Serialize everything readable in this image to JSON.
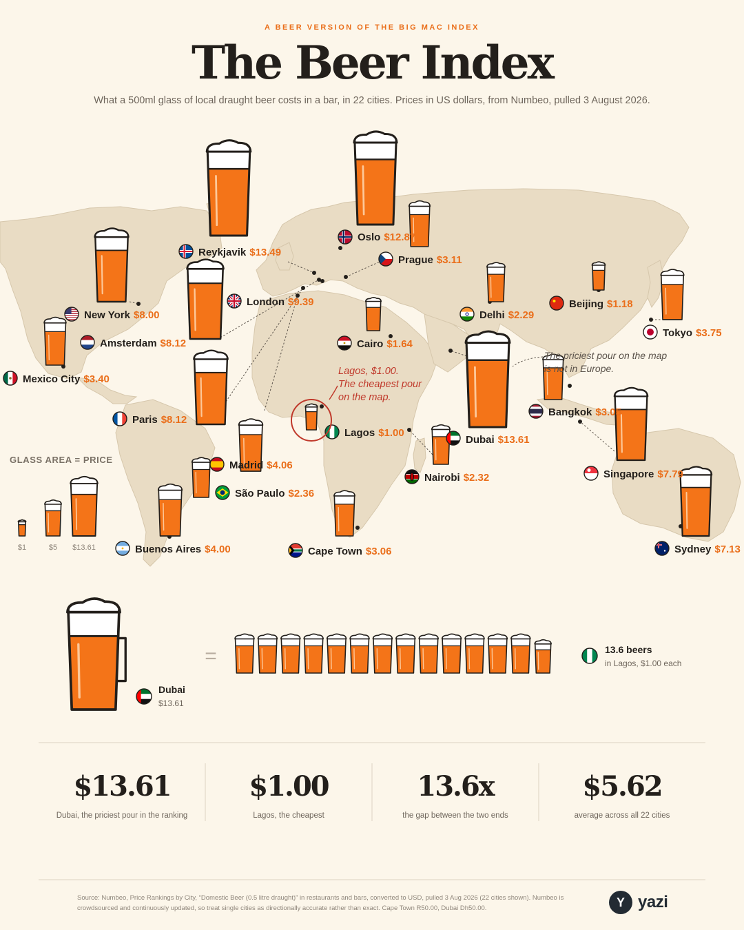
{
  "header": {
    "kicker": "A BEER VERSION OF THE BIG MAC INDEX",
    "title": "The Beer Index",
    "subtitle": "What a 500ml glass of local draught beer costs in a bar, in 22 cities. Prices in US dollars, from Numbeo, pulled 3 August 2026."
  },
  "colors": {
    "beer": "#f47418",
    "accent": "#ea6f1b",
    "foam": "#ffffff",
    "outline": "#231f1b",
    "land": "#e9dcc4",
    "annotation": "#c0392b"
  },
  "chart_data": {
    "type": "proportional-symbol-map",
    "unit": "USD per 500ml draught beer",
    "cities": [
      {
        "name": "Reykjavik",
        "price": 13.49,
        "price_label": "$13.49",
        "flag": "iceland-flag"
      },
      {
        "name": "Oslo",
        "price": 12.87,
        "price_label": "$12.87",
        "flag": "norway-flag"
      },
      {
        "name": "Prague",
        "price": 3.11,
        "price_label": "$3.11",
        "flag": "czech-flag"
      },
      {
        "name": "London",
        "price": 9.39,
        "price_label": "$9.39",
        "flag": "uk-flag"
      },
      {
        "name": "New York",
        "price": 8.0,
        "price_label": "$8.00",
        "flag": "usa-flag"
      },
      {
        "name": "Amsterdam",
        "price": 8.12,
        "price_label": "$8.12",
        "flag": "netherlands-flag"
      },
      {
        "name": "Mexico City",
        "price": 3.4,
        "price_label": "$3.40",
        "flag": "mexico-flag"
      },
      {
        "name": "Paris",
        "price": 8.12,
        "price_label": "$8.12",
        "flag": "france-flag"
      },
      {
        "name": "Madrid",
        "price": 4.06,
        "price_label": "$4.06",
        "flag": "spain-flag"
      },
      {
        "name": "São Paulo",
        "price": 2.36,
        "price_label": "$2.36",
        "flag": "brazil-flag"
      },
      {
        "name": "Buenos Aires",
        "price": 4.0,
        "price_label": "$4.00",
        "flag": "argentina-flag"
      },
      {
        "name": "Cairo",
        "price": 1.64,
        "price_label": "$1.64",
        "flag": "egypt-flag"
      },
      {
        "name": "Lagos",
        "price": 1.0,
        "price_label": "$1.00",
        "flag": "nigeria-flag"
      },
      {
        "name": "Cape Town",
        "price": 3.06,
        "price_label": "$3.06",
        "flag": "south-africa-flag"
      },
      {
        "name": "Nairobi",
        "price": 2.32,
        "price_label": "$2.32",
        "flag": "kenya-flag"
      },
      {
        "name": "Dubai",
        "price": 13.61,
        "price_label": "$13.61",
        "flag": "uae-flag"
      },
      {
        "name": "Delhi",
        "price": 2.29,
        "price_label": "$2.29",
        "flag": "india-flag"
      },
      {
        "name": "Beijing",
        "price": 1.18,
        "price_label": "$1.18",
        "flag": "china-flag"
      },
      {
        "name": "Tokyo",
        "price": 3.75,
        "price_label": "$3.75",
        "flag": "japan-flag"
      },
      {
        "name": "Bangkok",
        "price": 3.05,
        "price_label": "$3.05",
        "flag": "thailand-flag"
      },
      {
        "name": "Singapore",
        "price": 7.79,
        "price_label": "$7.79",
        "flag": "singapore-flag"
      },
      {
        "name": "Sydney",
        "price": 7.13,
        "price_label": "$7.13",
        "flag": "australia-flag"
      }
    ],
    "annotations": {
      "lagos": [
        "Lagos, $1.00.",
        "The cheapest pour",
        "on the map."
      ],
      "dubai": [
        "The priciest pour on the map",
        "is not in Europe."
      ]
    },
    "legend": {
      "title": "GLASS AREA = PRICE",
      "items": [
        {
          "label": "$1",
          "price": 1
        },
        {
          "label": "$5",
          "price": 5
        },
        {
          "label": "$13.61",
          "price": 13.61
        }
      ]
    }
  },
  "comparison": {
    "left_city": "Dubai",
    "left_price": "$13.61",
    "beer_count": 13.6,
    "right_title": "13.6 beers",
    "right_sub": "in Lagos, $1.00 each"
  },
  "stats": [
    {
      "value": "$13.61",
      "label": "Dubai, the priciest pour in the ranking"
    },
    {
      "value": "$1.00",
      "label": "Lagos, the cheapest"
    },
    {
      "value": "13.6x",
      "label": "the gap between the two ends"
    },
    {
      "value": "$5.62",
      "label": "average across all 22 cities"
    }
  ],
  "footer": {
    "source": "Source: Numbeo, Price Rankings by City, “Domestic Beer (0.5 litre draught)” in restaurants and bars, converted to USD, pulled 3 Aug 2026 (22 cities shown). Numbeo is crowdsourced and continuously updated, so treat single cities as directionally accurate rather than exact. Cape Town R50.00, Dubai Dh50.00."
  },
  "brand": {
    "mark": "Y",
    "name": "yazi"
  }
}
